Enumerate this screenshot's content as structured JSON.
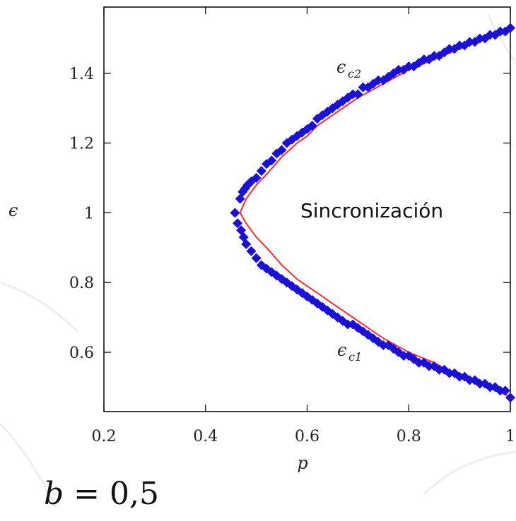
{
  "chart_data": {
    "type": "scatter",
    "xlabel": "p",
    "ylabel": "ϵ",
    "xlim": [
      0.2,
      1.0
    ],
    "ylim": [
      0.43,
      1.59
    ],
    "xticks": [
      0.2,
      0.4,
      0.6,
      0.8,
      1.0
    ],
    "xtick_labels": [
      "0.2",
      "0.4",
      "0.6",
      "0.8",
      "1"
    ],
    "yticks": [
      0.6,
      0.8,
      1.0,
      1.2,
      1.4
    ],
    "ytick_labels": [
      "0.6",
      "0.8",
      "1",
      "1.2",
      "1.4"
    ],
    "grid": false,
    "colors": {
      "points": "#1a10d8",
      "curve": "#ff2a2a",
      "axis": "#000000"
    },
    "region_label": "Sincronización",
    "annotations": [
      {
        "main": "ϵ",
        "sub": "c2",
        "x": 0.7,
        "y": 1.42
      },
      {
        "main": "ϵ",
        "sub": "c1",
        "x": 0.7,
        "y": 0.58
      }
    ],
    "series": [
      {
        "type": "scatter",
        "x": [
          0.458,
          0.468,
          0.473,
          0.478,
          0.483,
          0.49,
          0.5,
          0.51,
          0.52,
          0.53,
          0.54,
          0.55,
          0.56,
          0.57,
          0.58,
          0.59,
          0.6,
          0.61,
          0.62,
          0.63,
          0.64,
          0.65,
          0.66,
          0.67,
          0.68,
          0.69,
          0.7,
          0.71,
          0.72,
          0.73,
          0.74,
          0.75,
          0.76,
          0.77,
          0.78,
          0.79,
          0.8,
          0.81,
          0.82,
          0.83,
          0.84,
          0.85,
          0.86,
          0.87,
          0.88,
          0.89,
          0.9,
          0.91,
          0.92,
          0.93,
          0.94,
          0.95,
          0.96,
          0.97,
          0.98,
          0.99,
          1.0
        ],
        "y": [
          1.0,
          1.04,
          1.06,
          1.07,
          1.08,
          1.09,
          1.1,
          1.12,
          1.14,
          1.15,
          1.17,
          1.18,
          1.2,
          1.21,
          1.22,
          1.23,
          1.24,
          1.25,
          1.27,
          1.28,
          1.29,
          1.3,
          1.31,
          1.32,
          1.33,
          1.34,
          1.34,
          1.36,
          1.36,
          1.37,
          1.38,
          1.38,
          1.39,
          1.4,
          1.41,
          1.41,
          1.42,
          1.42,
          1.43,
          1.44,
          1.44,
          1.45,
          1.45,
          1.46,
          1.47,
          1.47,
          1.48,
          1.48,
          1.49,
          1.49,
          1.5,
          1.5,
          1.51,
          1.51,
          1.52,
          1.52,
          1.53
        ]
      },
      {
        "type": "scatter",
        "x": [
          0.463,
          0.47,
          0.475,
          0.48,
          0.49,
          0.5,
          0.51,
          0.52,
          0.53,
          0.54,
          0.55,
          0.56,
          0.57,
          0.58,
          0.59,
          0.6,
          0.61,
          0.62,
          0.63,
          0.64,
          0.65,
          0.66,
          0.67,
          0.68,
          0.69,
          0.7,
          0.71,
          0.72,
          0.73,
          0.74,
          0.75,
          0.76,
          0.77,
          0.78,
          0.79,
          0.8,
          0.81,
          0.82,
          0.83,
          0.84,
          0.85,
          0.86,
          0.87,
          0.88,
          0.89,
          0.9,
          0.91,
          0.92,
          0.93,
          0.94,
          0.95,
          0.96,
          0.97,
          0.98,
          0.99,
          1.0
        ],
        "y": [
          0.97,
          0.95,
          0.93,
          0.91,
          0.89,
          0.87,
          0.85,
          0.84,
          0.83,
          0.82,
          0.81,
          0.8,
          0.79,
          0.78,
          0.77,
          0.76,
          0.75,
          0.74,
          0.73,
          0.72,
          0.71,
          0.7,
          0.69,
          0.68,
          0.68,
          0.67,
          0.66,
          0.65,
          0.64,
          0.63,
          0.62,
          0.62,
          0.61,
          0.6,
          0.59,
          0.59,
          0.58,
          0.57,
          0.57,
          0.56,
          0.56,
          0.55,
          0.55,
          0.54,
          0.54,
          0.53,
          0.53,
          0.52,
          0.52,
          0.51,
          0.51,
          0.5,
          0.5,
          0.49,
          0.49,
          0.47
        ]
      },
      {
        "type": "line",
        "x": [
          0.468,
          0.48,
          0.5,
          0.52,
          0.55,
          0.58,
          0.6,
          0.62,
          0.65,
          0.7,
          0.75,
          0.8,
          0.85,
          0.9,
          0.95,
          1.0
        ],
        "y": [
          1.0,
          1.04,
          1.08,
          1.11,
          1.16,
          1.2,
          1.22,
          1.25,
          1.28,
          1.33,
          1.37,
          1.41,
          1.44,
          1.47,
          1.5,
          1.53
        ]
      },
      {
        "type": "line",
        "x": [
          0.468,
          0.48,
          0.5,
          0.52,
          0.55,
          0.58,
          0.6,
          0.62,
          0.65,
          0.7,
          0.75,
          0.8,
          0.85,
          0.9,
          0.95,
          1.0
        ],
        "y": [
          1.0,
          0.97,
          0.93,
          0.9,
          0.85,
          0.81,
          0.79,
          0.77,
          0.74,
          0.69,
          0.64,
          0.6,
          0.57,
          0.53,
          0.51,
          0.47
        ]
      }
    ]
  },
  "caption": {
    "var": "b",
    "eq": " = 0,5"
  }
}
